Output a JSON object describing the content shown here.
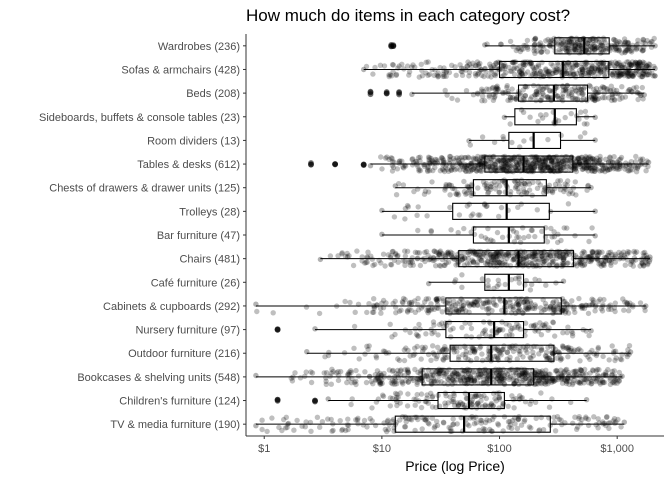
{
  "chart_data": {
    "type": "boxplot-jitter",
    "title": "How much do items in each category cost?",
    "xlabel": "Price (log Price)",
    "ylabel": "",
    "x_scale": "log10",
    "xlim": [
      0.7,
      2500
    ],
    "x_ticks": [
      {
        "value": 1,
        "label": "$1"
      },
      {
        "value": 10,
        "label": "$10"
      },
      {
        "value": 100,
        "label": "$100"
      },
      {
        "value": 1000,
        "label": "$1,000"
      }
    ],
    "grid": false,
    "legend": "none",
    "colors": {
      "point": "#000000",
      "box": "#000000",
      "axis": "#333333"
    },
    "categories": [
      {
        "label": "Wardrobes (236)",
        "n": 236,
        "min": 75,
        "q1": 295,
        "median": 525,
        "q3": 855,
        "max": 2100,
        "outliers": [
          12,
          12.5
        ],
        "extra_lo": 75
      },
      {
        "label": "Sofas & armchairs (428)",
        "n": 428,
        "min": 7,
        "q1": 100,
        "median": 345,
        "q3": 850,
        "max": 2100,
        "outliers": [],
        "extra_lo": 7
      },
      {
        "label": "Beds (208)",
        "n": 208,
        "min": 18,
        "q1": 145,
        "median": 290,
        "q3": 560,
        "max": 1700,
        "outliers": [
          8,
          11,
          14
        ],
        "extra_lo": 18
      },
      {
        "label": "Sideboards, buffets & console tables (23)",
        "n": 23,
        "min": 110,
        "q1": 135,
        "median": 295,
        "q3": 450,
        "max": 650,
        "outliers": [],
        "extra_lo": 110
      },
      {
        "label": "Room dividers (13)",
        "n": 13,
        "min": 55,
        "q1": 120,
        "median": 195,
        "q3": 330,
        "max": 650,
        "outliers": [],
        "extra_lo": 55
      },
      {
        "label": "Tables & desks (612)",
        "n": 612,
        "min": 8,
        "q1": 75,
        "median": 160,
        "q3": 420,
        "max": 1850,
        "outliers": [
          2.5,
          4,
          7
        ],
        "extra_lo": 8
      },
      {
        "label": "Chests of drawers & drawer units (125)",
        "n": 125,
        "min": 13,
        "q1": 60,
        "median": 115,
        "q3": 250,
        "max": 600,
        "outliers": [],
        "extra_lo": 13
      },
      {
        "label": "Trolleys (28)",
        "n": 28,
        "min": 10,
        "q1": 40,
        "median": 115,
        "q3": 265,
        "max": 650,
        "outliers": [],
        "extra_lo": 10
      },
      {
        "label": "Bar furniture (47)",
        "n": 47,
        "min": 10,
        "q1": 60,
        "median": 120,
        "q3": 240,
        "max": 650,
        "outliers": [],
        "extra_lo": 10
      },
      {
        "label": "Chairs (481)",
        "n": 481,
        "min": 3,
        "q1": 45,
        "median": 145,
        "q3": 425,
        "max": 1900,
        "outliers": [],
        "extra_lo": 3
      },
      {
        "label": "Café furniture (26)",
        "n": 26,
        "min": 25,
        "q1": 75,
        "median": 120,
        "q3": 160,
        "max": 350,
        "outliers": [],
        "extra_lo": 25
      },
      {
        "label": "Cabinets & cupboards (292)",
        "n": 292,
        "min": 0.85,
        "q1": 35,
        "median": 110,
        "q3": 335,
        "max": 1750,
        "outliers": [],
        "extra_lo": 0.85
      },
      {
        "label": "Nursery furniture (97)",
        "n": 97,
        "min": 2.7,
        "q1": 35,
        "median": 90,
        "q3": 160,
        "max": 600,
        "outliers": [
          1.3
        ],
        "extra_lo": 2.7
      },
      {
        "label": "Outdoor furniture (216)",
        "n": 216,
        "min": 2.3,
        "q1": 38,
        "median": 85,
        "q3": 290,
        "max": 1300,
        "outliers": [],
        "extra_lo": 2.3
      },
      {
        "label": "Bookcases & shelving units (548)",
        "n": 548,
        "min": 0.85,
        "q1": 22,
        "median": 85,
        "q3": 195,
        "max": 1100,
        "outliers": [],
        "extra_lo": 0.85
      },
      {
        "label": "Children's furniture (124)",
        "n": 124,
        "min": 3.5,
        "q1": 30,
        "median": 55,
        "q3": 110,
        "max": 550,
        "outliers": [
          1.3,
          2.7
        ],
        "extra_lo": 3.5
      },
      {
        "label": "TV & media furniture (190)",
        "n": 190,
        "min": 0.85,
        "q1": 13,
        "median": 50,
        "q3": 270,
        "max": 1150,
        "outliers": [],
        "extra_lo": 0.85
      }
    ]
  }
}
